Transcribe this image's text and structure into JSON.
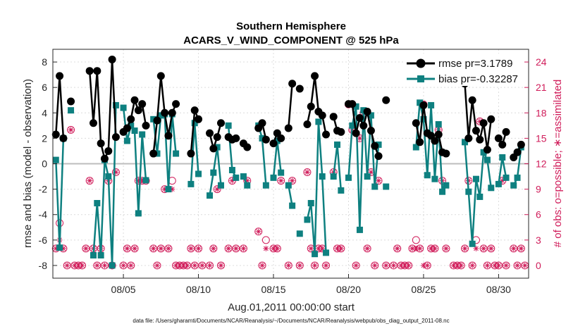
{
  "chart_data": {
    "type": "line",
    "title": "Southern Hemisphere",
    "subtitle": "ACARS_V_WIND_COMPONENT @ 525 hPa",
    "xlabel": "Aug.01,2011 00:00:00 start",
    "ylabel": "rmse and bias (model - observation)",
    "ylabel_right": "# of obs: o=possible; ∗=assimilated",
    "xlim": [
      0.3,
      32.0
    ],
    "ylim": [
      -9,
      9
    ],
    "ylim_right": [
      -1.5,
      25.5
    ],
    "x_ticks": [
      5,
      10,
      15,
      20,
      25,
      30
    ],
    "x_tick_labels": [
      "08/05",
      "08/10",
      "08/15",
      "08/20",
      "08/25",
      "08/30"
    ],
    "y_ticks": [
      -8,
      -6,
      -4,
      -2,
      0,
      2,
      4,
      6,
      8
    ],
    "y_tick_labels": [
      "-8",
      "-6",
      "-4",
      "-2",
      "0",
      "2",
      "4",
      "6",
      "8"
    ],
    "y_right_ticks": [
      0,
      3,
      6,
      9,
      12,
      15,
      18,
      21,
      24
    ],
    "y_right_tick_labels": [
      "0",
      "3",
      "6",
      "9",
      "12",
      "15",
      "18",
      "21",
      "24"
    ],
    "legend": {
      "position": "top-right",
      "entries": [
        "rmse pr=3.1789",
        "bias pr=-0.32287"
      ]
    },
    "footnote": "data file: /Users/gharamti/Documents/NCAR/Reanalysis/~/Documents/NCAR/Reanalysis/webpub/obs_diag_output_2011-08.nc",
    "colors": {
      "rmse": "#000000",
      "bias": "#0e8080",
      "obs": "#d01c5a",
      "zero_line": "#bdbdbd"
    },
    "series": [
      {
        "name": "rmse",
        "x": [
          0.5,
          0.75,
          1.0,
          1.5,
          2.75,
          3.0,
          3.25,
          3.5,
          3.75,
          4.0,
          4.25,
          4.5,
          5.0,
          5.25,
          5.5,
          5.75,
          6.0,
          6.25,
          6.5,
          7.0,
          7.25,
          7.5,
          7.75,
          8.0,
          8.25,
          8.5,
          9.5,
          9.75,
          10.0,
          10.75,
          11.0,
          11.25,
          11.5,
          12.0,
          12.25,
          12.5,
          13.0,
          13.25,
          14.0,
          14.25,
          14.5,
          15.0,
          15.25,
          15.5,
          16.0,
          16.25,
          16.75,
          17.25,
          17.5,
          17.75,
          18.0,
          18.25,
          18.5,
          19.0,
          19.25,
          19.5,
          20.0,
          20.25,
          20.5,
          20.75,
          21.0,
          21.25,
          21.5,
          21.75,
          22.0,
          22.5,
          24.5,
          24.75,
          25.0,
          25.25,
          25.5,
          25.75,
          26.0,
          26.25,
          26.5,
          27.75,
          28.0,
          28.25,
          28.5,
          28.75,
          29.0,
          29.25,
          29.5,
          30.0,
          30.25,
          30.5,
          31.0,
          31.25,
          31.5
        ],
        "values": [
          2.3,
          6.9,
          2.0,
          4.9,
          7.3,
          3.2,
          7.3,
          1.6,
          0.4,
          1.0,
          8.2,
          2.1,
          2.5,
          2.8,
          3.5,
          5.0,
          4.2,
          4.7,
          3.0,
          0.8,
          3.4,
          6.9,
          4.0,
          2.2,
          4.0,
          4.7,
          0.8,
          4.2,
          3.5,
          2.4,
          1.2,
          2.1,
          3.2,
          2.1,
          1.9,
          2.0,
          1.6,
          1.3,
          2.8,
          3.2,
          1.9,
          1.6,
          2.4,
          2.0,
          2.8,
          6.3,
          5.9,
          3.1,
          4.5,
          6.9,
          4.1,
          3.8,
          2.3,
          3.7,
          2.6,
          2.5,
          4.7,
          4.7,
          2.4,
          3.6,
          3.0,
          4.1,
          2.6,
          1.4,
          0.6,
          5.0,
          3.2,
          1.7,
          4.6,
          2.4,
          2.2,
          1.8,
          2.3,
          0.9,
          0.8,
          6.3,
          2.0,
          5.0,
          2.6,
          1.9,
          3.2,
          1.1,
          3.5,
          2.0,
          1.5,
          2.5,
          0.5,
          0.9,
          1.5
        ]
      },
      {
        "name": "bias",
        "x": [
          0.5,
          0.75,
          1.0,
          1.5,
          3.0,
          3.25,
          3.5,
          3.75,
          4.0,
          4.25,
          4.5,
          5.0,
          5.25,
          5.5,
          5.75,
          6.0,
          6.25,
          6.5,
          7.0,
          7.25,
          7.5,
          7.75,
          8.0,
          8.25,
          8.5,
          9.5,
          9.75,
          10.0,
          10.75,
          11.0,
          11.25,
          11.5,
          12.0,
          12.25,
          12.5,
          13.0,
          13.25,
          14.0,
          14.25,
          14.5,
          15.0,
          15.25,
          15.5,
          16.0,
          16.25,
          16.75,
          17.25,
          17.5,
          17.75,
          18.0,
          18.25,
          18.5,
          19.0,
          19.25,
          19.5,
          20.0,
          20.25,
          20.5,
          20.75,
          21.0,
          21.25,
          21.5,
          21.75,
          22.0,
          22.5,
          24.5,
          24.75,
          25.0,
          25.25,
          25.5,
          25.75,
          26.0,
          26.25,
          26.5,
          27.75,
          28.0,
          28.25,
          28.5,
          28.75,
          29.0,
          29.25,
          29.5,
          30.0,
          30.25,
          30.5,
          31.0,
          31.25,
          31.5
        ],
        "values": [
          0.3,
          -6.6,
          2.0,
          4.2,
          -7.2,
          -3.1,
          -7.2,
          0.3,
          -1.0,
          -8.0,
          4.6,
          4.4,
          1.8,
          3.0,
          2.6,
          -3.9,
          2.3,
          -1.3,
          3.5,
          0.8,
          3.8,
          3.9,
          -2.0,
          3.9,
          0.8,
          -1.6,
          3.2,
          -0.8,
          -2.5,
          -0.7,
          1.3,
          -1.7,
          3.0,
          -0.5,
          -1.1,
          -1.0,
          -1.7,
          3.0,
          2.0,
          -1.7,
          -1.1,
          1.8,
          -0.7,
          -1.7,
          -3.3,
          -5.5,
          -4.4,
          -3.1,
          -7.1,
          3.3,
          -1.0,
          -7.0,
          -1.0,
          1.5,
          -2.1,
          -1.1,
          3.0,
          4.5,
          -5.2,
          4.2,
          -1.0,
          3.8,
          -1.8,
          1.5,
          -1.8,
          1.3,
          4.8,
          3.5,
          -0.9,
          4.6,
          -1.2,
          3.1,
          -2.2,
          -1.7,
          1.7,
          -2.2,
          -6.3,
          -1.2,
          -2.6,
          0.9,
          0.3,
          -1.9,
          -1.6,
          0.5,
          -1.1,
          -1.7,
          -1.1,
          1.3
        ]
      },
      {
        "name": "obs possible (o)",
        "x": [
          0.5,
          0.75,
          1.0,
          1.25,
          1.5,
          1.75,
          2.0,
          2.25,
          2.5,
          2.75,
          3.0,
          3.25,
          3.5,
          3.75,
          4.0,
          4.25,
          4.5,
          5.0,
          5.25,
          5.5,
          5.75,
          6.0,
          6.25,
          6.5,
          7.0,
          7.25,
          7.5,
          7.75,
          8.0,
          8.25,
          8.5,
          8.75,
          9.0,
          9.25,
          9.5,
          9.75,
          10.0,
          10.25,
          10.75,
          11.0,
          11.25,
          11.5,
          12.0,
          12.25,
          12.5,
          13.0,
          13.25,
          14.0,
          14.25,
          14.5,
          15.0,
          15.25,
          15.5,
          16.0,
          16.25,
          16.75,
          17.25,
          17.5,
          17.75,
          18.0,
          18.25,
          18.5,
          19.0,
          19.25,
          19.5,
          20.0,
          20.25,
          20.5,
          20.75,
          21.0,
          21.25,
          21.5,
          21.75,
          22.0,
          22.5,
          23.0,
          23.25,
          23.5,
          23.75,
          24.0,
          24.25,
          24.5,
          24.75,
          25.0,
          25.25,
          25.5,
          25.75,
          26.0,
          26.25,
          26.5,
          27.0,
          27.25,
          27.5,
          27.75,
          28.0,
          28.25,
          28.5,
          28.75,
          29.0,
          29.25,
          29.5,
          29.75,
          30.0,
          30.25,
          30.5,
          31.0,
          31.25,
          31.5,
          31.75
        ],
        "values": [
          2,
          5,
          2,
          0,
          16,
          0,
          0,
          0,
          2,
          10,
          2,
          0,
          2,
          0,
          10,
          0,
          11,
          0,
          2,
          0,
          2,
          10,
          10,
          10,
          2,
          0,
          2,
          9,
          2,
          10,
          0,
          0,
          0,
          0,
          2,
          0,
          2,
          0,
          0,
          2,
          9,
          0,
          2,
          10,
          2,
          2,
          10,
          4,
          0,
          3,
          2,
          2,
          10,
          0,
          10,
          0,
          11,
          2,
          0,
          2,
          2,
          0,
          11,
          2,
          2,
          19,
          16,
          0,
          15,
          18,
          2,
          11,
          0,
          10,
          0,
          0,
          2,
          0,
          0,
          0,
          2,
          3,
          2,
          19,
          0,
          2,
          2,
          16,
          10,
          2,
          0,
          0,
          0,
          2,
          10,
          0,
          3,
          17,
          2,
          0,
          2,
          0,
          0,
          10,
          0,
          2,
          0,
          2,
          0
        ]
      },
      {
        "name": "obs assimilated (*)",
        "x": [
          0.5,
          0.75,
          1.0,
          1.25,
          1.5,
          1.75,
          2.0,
          2.25,
          2.5,
          2.75,
          3.0,
          3.25,
          3.5,
          3.75,
          4.0,
          4.25,
          4.5,
          5.0,
          5.25,
          5.5,
          5.75,
          6.0,
          6.25,
          6.5,
          7.0,
          7.25,
          7.5,
          7.75,
          8.0,
          8.25,
          8.5,
          8.75,
          9.0,
          9.25,
          9.5,
          9.75,
          10.0,
          10.25,
          10.75,
          11.0,
          11.25,
          11.5,
          12.0,
          12.25,
          12.5,
          13.0,
          13.25,
          14.0,
          14.25,
          14.5,
          15.0,
          15.25,
          15.5,
          16.0,
          16.25,
          16.75,
          17.25,
          17.5,
          17.75,
          18.0,
          18.25,
          18.5,
          19.0,
          19.25,
          19.5,
          20.0,
          20.25,
          20.5,
          20.75,
          21.0,
          21.25,
          21.5,
          21.75,
          22.0,
          22.5,
          23.0,
          23.25,
          23.5,
          23.75,
          24.0,
          24.25,
          24.5,
          24.75,
          25.0,
          25.25,
          25.5,
          25.75,
          26.0,
          26.25,
          26.5,
          27.0,
          27.25,
          27.5,
          27.75,
          28.0,
          28.25,
          28.5,
          28.75,
          29.0,
          29.25,
          29.5,
          29.75,
          30.0,
          30.25,
          30.5,
          31.0,
          31.25,
          31.5,
          31.75
        ],
        "values": [
          2,
          3,
          2,
          0,
          16,
          0,
          0,
          0,
          2,
          10,
          2,
          0,
          2,
          0,
          10,
          0,
          11,
          0,
          2,
          0,
          2,
          10,
          10,
          10,
          2,
          0,
          2,
          9,
          2,
          9,
          0,
          0,
          0,
          0,
          2,
          0,
          2,
          0,
          0,
          2,
          9,
          0,
          2,
          10,
          2,
          2,
          10,
          4,
          0,
          2,
          2,
          2,
          10,
          0,
          10,
          0,
          11,
          2,
          0,
          2,
          2,
          0,
          11,
          2,
          2,
          19,
          16,
          0,
          15,
          18,
          2,
          11,
          0,
          10,
          0,
          0,
          2,
          0,
          0,
          0,
          2,
          2,
          2,
          0,
          0,
          2,
          2,
          16,
          10,
          2,
          0,
          0,
          0,
          2,
          10,
          0,
          2,
          17,
          2,
          0,
          2,
          0,
          0,
          10,
          0,
          2,
          0,
          2,
          0
        ]
      }
    ]
  }
}
